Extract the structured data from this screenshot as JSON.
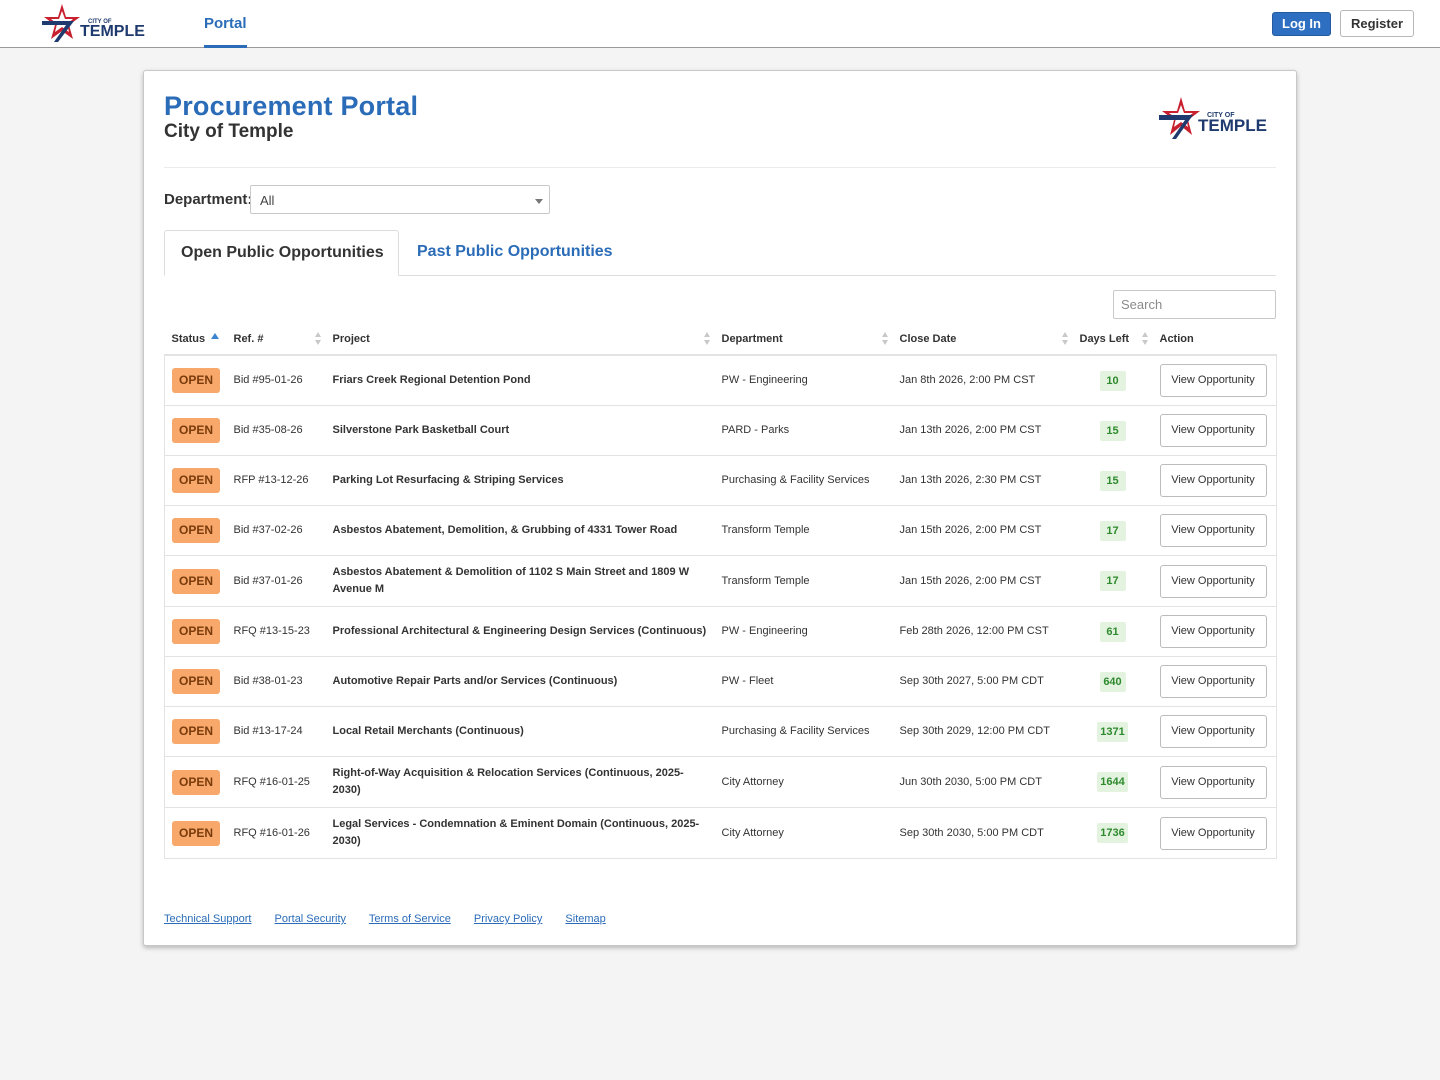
{
  "header": {
    "logo_text_small": "CITY OF",
    "logo_text_large": "TEMPLE",
    "nav_portal": "Portal",
    "login_label": "Log In",
    "register_label": "Register"
  },
  "page": {
    "title": "Procurement Portal",
    "subtitle": "City of Temple",
    "department_label": "Department:",
    "department_value": "All",
    "tabs": [
      {
        "label": "Open Public Opportunities",
        "active": true
      },
      {
        "label": "Past Public Opportunities",
        "active": false
      }
    ],
    "search_placeholder": "Search"
  },
  "table": {
    "columns": [
      "Status",
      "Ref. #",
      "Project",
      "Department",
      "Close Date",
      "Days Left",
      "Action"
    ],
    "rows": [
      {
        "status": "OPEN",
        "ref": "Bid #95-01-26",
        "project": "Friars Creek Regional Detention Pond",
        "department": "PW - Engineering",
        "close_date": "Jan 8th 2026, 2:00 PM CST",
        "days_left": "10",
        "action": "View Opportunity"
      },
      {
        "status": "OPEN",
        "ref": "Bid #35-08-26",
        "project": "Silverstone Park Basketball Court",
        "department": "PARD - Parks",
        "close_date": "Jan 13th 2026, 2:00 PM CST",
        "days_left": "15",
        "action": "View Opportunity"
      },
      {
        "status": "OPEN",
        "ref": "RFP #13-12-26",
        "project": "Parking Lot Resurfacing & Striping Services",
        "department": "Purchasing & Facility Services",
        "close_date": "Jan 13th 2026, 2:30 PM CST",
        "days_left": "15",
        "action": "View Opportunity"
      },
      {
        "status": "OPEN",
        "ref": "Bid #37-02-26",
        "project": "Asbestos Abatement, Demolition, & Grubbing of 4331 Tower Road",
        "department": "Transform Temple",
        "close_date": "Jan 15th 2026, 2:00 PM CST",
        "days_left": "17",
        "action": "View Opportunity"
      },
      {
        "status": "OPEN",
        "ref": "Bid #37-01-26",
        "project": "Asbestos Abatement & Demolition of 1102 S Main Street and 1809 W Avenue M",
        "department": "Transform Temple",
        "close_date": "Jan 15th 2026, 2:00 PM CST",
        "days_left": "17",
        "action": "View Opportunity"
      },
      {
        "status": "OPEN",
        "ref": "RFQ #13-15-23",
        "project": "Professional Architectural & Engineering Design Services (Continuous)",
        "department": "PW - Engineering",
        "close_date": "Feb 28th 2026, 12:00 PM CST",
        "days_left": "61",
        "action": "View Opportunity"
      },
      {
        "status": "OPEN",
        "ref": "Bid #38-01-23",
        "project": "Automotive Repair Parts and/or Services (Continuous)",
        "department": "PW - Fleet",
        "close_date": "Sep 30th 2027, 5:00 PM CDT",
        "days_left": "640",
        "action": "View Opportunity"
      },
      {
        "status": "OPEN",
        "ref": "Bid #13-17-24",
        "project": "Local Retail Merchants (Continuous)",
        "department": "Purchasing & Facility Services",
        "close_date": "Sep 30th 2029, 12:00 PM CDT",
        "days_left": "1371",
        "action": "View Opportunity"
      },
      {
        "status": "OPEN",
        "ref": "RFQ #16-01-25",
        "project": "Right-of-Way Acquisition & Relocation Services (Continuous, 2025-2030)",
        "department": "City Attorney",
        "close_date": "Jun 30th 2030, 5:00 PM CDT",
        "days_left": "1644",
        "action": "View Opportunity"
      },
      {
        "status": "OPEN",
        "ref": "RFQ #16-01-26",
        "project": "Legal Services - Condemnation & Eminent Domain (Continuous, 2025-2030)",
        "department": "City Attorney",
        "close_date": "Sep 30th 2030, 5:00 PM CDT",
        "days_left": "1736",
        "action": "View Opportunity"
      }
    ]
  },
  "footer": {
    "links": [
      "Technical Support",
      "Portal Security",
      "Terms of Service",
      "Privacy Policy",
      "Sitemap"
    ]
  },
  "colors": {
    "brand_blue": "#2a6cb8",
    "status_open": "#f7a86a",
    "days_left_bg": "#e4f3e0",
    "days_left_text": "#2d8a2d",
    "logo_red": "#c8202f",
    "logo_navy": "#1f3a6e"
  },
  "icons": [
    "city-of-temple-star-logo",
    "sort-asc-icon",
    "sort-icon",
    "dropdown-caret-icon"
  ]
}
